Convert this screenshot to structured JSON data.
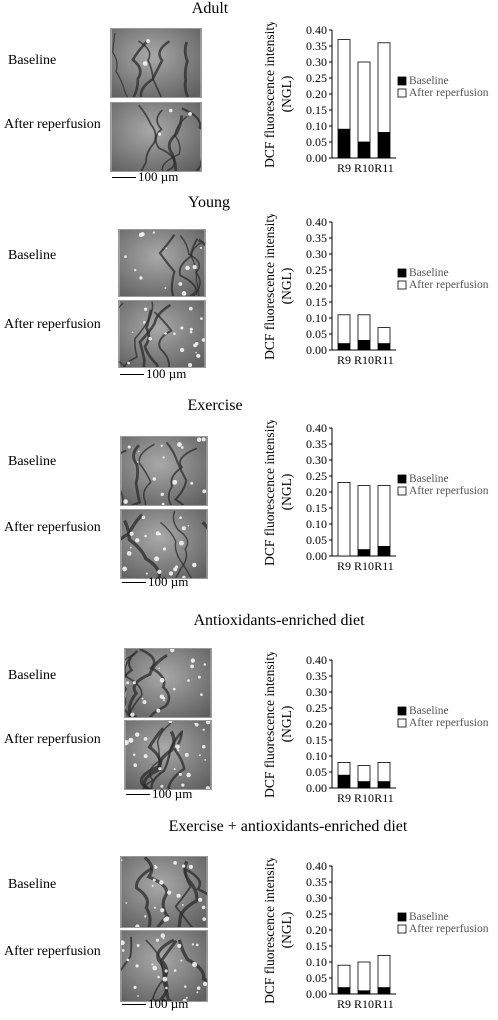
{
  "panels": [
    {
      "title": "Adult",
      "row_labels": [
        "Baseline",
        "After reperfusion"
      ],
      "scale_label": "100 µm",
      "chart_data": {
        "type": "bar",
        "stacked": true,
        "categories": [
          "R9",
          "R10",
          "R11"
        ],
        "series": [
          {
            "name": "Baseline",
            "color": "#000000",
            "values": [
              0.09,
              0.05,
              0.08
            ]
          },
          {
            "name": "After reperfusion",
            "color": "#ffffff",
            "values": [
              0.28,
              0.25,
              0.28
            ]
          }
        ],
        "ylabel": "DCF fluorescence intensity (NGL)",
        "ylim": [
          0,
          0.4
        ],
        "yticks": [
          "0.00",
          "0.05",
          "0.10",
          "0.15",
          "0.20",
          "0.25",
          "0.30",
          "0.35",
          "0.40"
        ],
        "legend": "right"
      }
    },
    {
      "title": "Young",
      "row_labels": [
        "Baseline",
        "After reperfusion"
      ],
      "scale_label": "100 µm",
      "chart_data": {
        "type": "bar",
        "stacked": true,
        "categories": [
          "R9",
          "R10",
          "R11"
        ],
        "series": [
          {
            "name": "Baseline",
            "color": "#000000",
            "values": [
              0.02,
              0.03,
              0.02
            ]
          },
          {
            "name": "After reperfusion",
            "color": "#ffffff",
            "values": [
              0.09,
              0.08,
              0.05
            ]
          }
        ],
        "ylabel": "DCF fluorescence intensity (NGL)",
        "ylim": [
          0,
          0.4
        ],
        "yticks": [
          "0.00",
          "0.05",
          "0.10",
          "0.15",
          "0.20",
          "0.25",
          "0.30",
          "0.35",
          "0.40"
        ],
        "legend": "right"
      }
    },
    {
      "title": "Exercise",
      "row_labels": [
        "Baseline",
        "After reperfusion"
      ],
      "scale_label": "100 µm",
      "chart_data": {
        "type": "bar",
        "stacked": true,
        "categories": [
          "R9",
          "R10",
          "R11"
        ],
        "series": [
          {
            "name": "Baseline",
            "color": "#000000",
            "values": [
              0.0,
              0.02,
              0.03
            ]
          },
          {
            "name": "After reperfusion",
            "color": "#ffffff",
            "values": [
              0.23,
              0.2,
              0.19
            ]
          }
        ],
        "ylabel": "DCF fluorescence intensity (NGL)",
        "ylim": [
          0,
          0.4
        ],
        "yticks": [
          "0.00",
          "0.05",
          "0.10",
          "0.15",
          "0.20",
          "0.25",
          "0.30",
          "0.35",
          "0.40"
        ],
        "legend": "right"
      }
    },
    {
      "title": "Antioxidants-enriched diet",
      "row_labels": [
        "Baseline",
        "After reperfusion"
      ],
      "scale_label": "100 µm",
      "chart_data": {
        "type": "bar",
        "stacked": true,
        "categories": [
          "R9",
          "R10",
          "R11"
        ],
        "series": [
          {
            "name": "Baseline",
            "color": "#000000",
            "values": [
              0.04,
              0.02,
              0.02
            ]
          },
          {
            "name": "After reperfusion",
            "color": "#ffffff",
            "values": [
              0.04,
              0.05,
              0.06
            ]
          }
        ],
        "ylabel": "DCF fluorescence intensity (NGL)",
        "ylim": [
          0,
          0.4
        ],
        "yticks": [
          "0.00",
          "0.05",
          "0.10",
          "0.15",
          "0.20",
          "0.25",
          "0.30",
          "0.35",
          "0.40"
        ],
        "legend": "right"
      }
    },
    {
      "title": "Exercise + antioxidants-enriched diet",
      "row_labels": [
        "Baseline",
        "After reperfusion"
      ],
      "scale_label": "100 µm",
      "chart_data": {
        "type": "bar",
        "stacked": true,
        "categories": [
          "R9",
          "R10",
          "R11"
        ],
        "series": [
          {
            "name": "Baseline",
            "color": "#000000",
            "values": [
              0.02,
              0.01,
              0.02
            ]
          },
          {
            "name": "After reperfusion",
            "color": "#ffffff",
            "values": [
              0.07,
              0.09,
              0.1
            ]
          }
        ],
        "ylabel": "DCF fluorescence intensity (NGL)",
        "ylim": [
          0,
          0.4
        ],
        "yticks": [
          "0.00",
          "0.05",
          "0.10",
          "0.15",
          "0.20",
          "0.25",
          "0.30",
          "0.35",
          "0.40"
        ],
        "legend": "right"
      }
    }
  ]
}
